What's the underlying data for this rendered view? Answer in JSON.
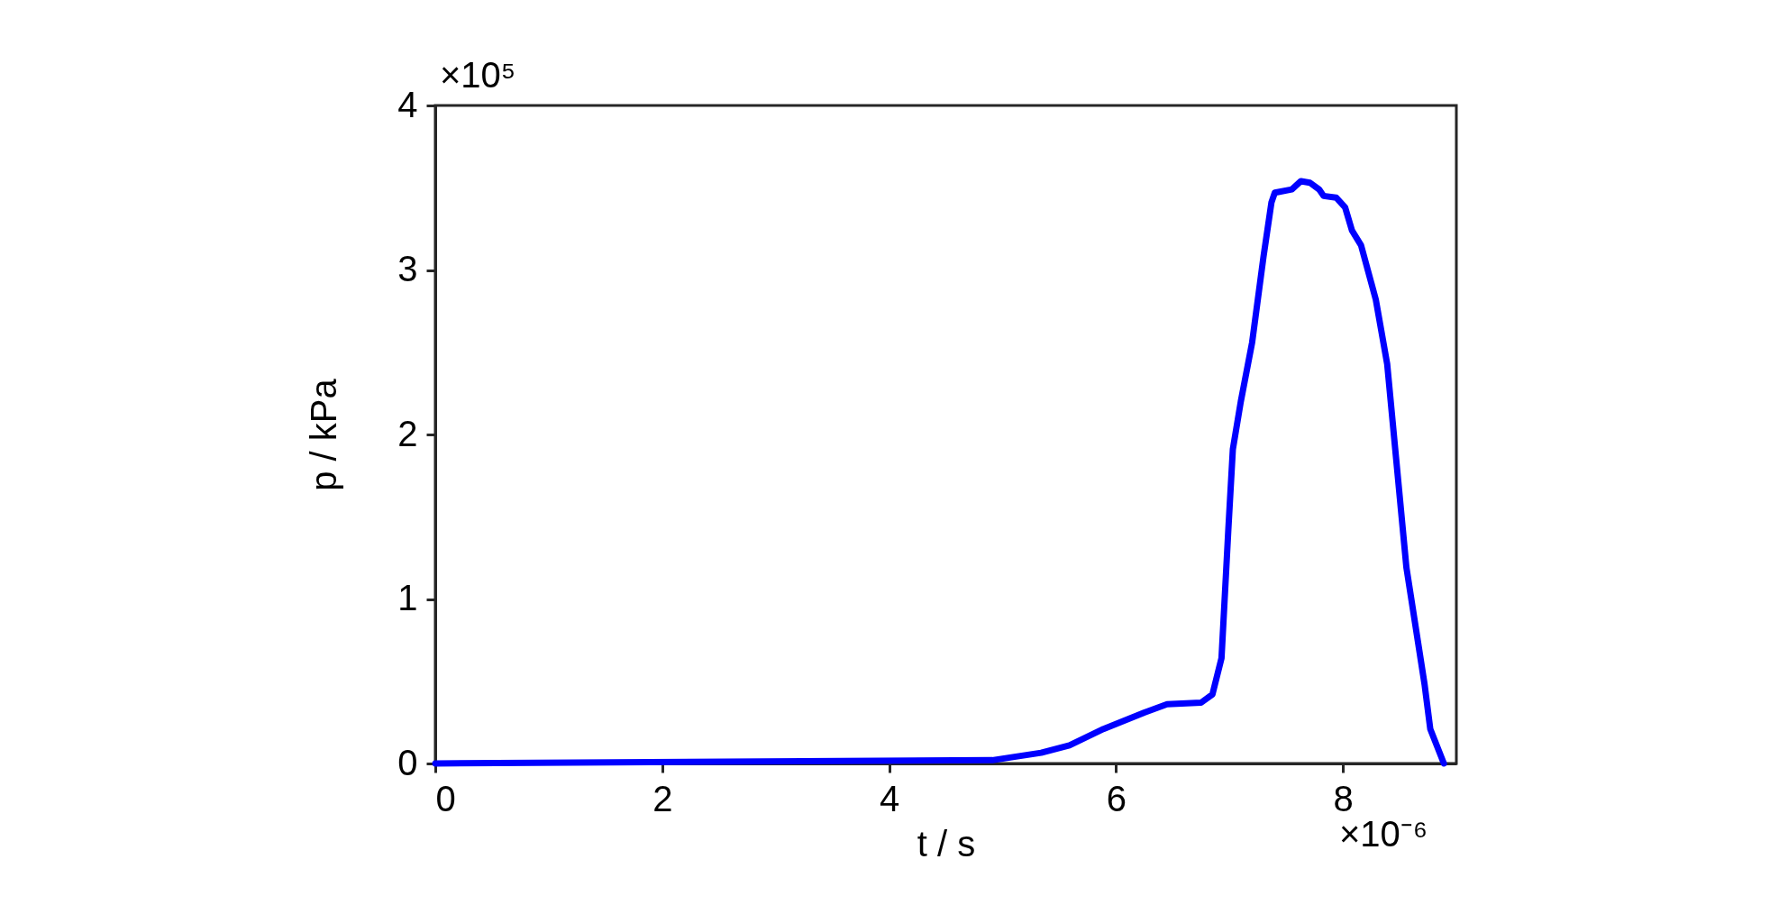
{
  "chart_data": {
    "type": "line",
    "xlabel": "t / s",
    "ylabel": "p / kPa",
    "annotations": [
      "×10⁵",
      "×10⁻⁶"
    ],
    "xlim": [
      0,
      9
    ],
    "xticks": [
      0,
      2,
      4,
      6,
      8
    ],
    "ylim": [
      0,
      4
    ],
    "yticks": [
      0,
      1,
      2,
      3,
      4
    ],
    "grid": false,
    "marker": "none",
    "line_style": "solid",
    "series": [
      {
        "color": "#0000ff",
        "x": [
          0,
          4.91,
          5.34,
          5.59,
          5.89,
          6.25,
          6.45,
          6.75,
          6.85,
          6.93,
          6.99,
          7.03,
          7.1,
          7.2,
          7.3,
          7.37,
          7.4,
          7.55,
          7.63,
          7.71,
          7.79,
          7.83,
          7.94,
          8.02,
          8.08,
          8.16,
          8.29,
          8.39,
          8.56,
          8.72,
          8.77,
          8.89
        ],
        "values": [
          0,
          0.02,
          0.065,
          0.11,
          0.21,
          0.31,
          0.36,
          0.37,
          0.42,
          0.64,
          1.42,
          1.91,
          2.2,
          2.56,
          3.08,
          3.41,
          3.47,
          3.49,
          3.54,
          3.53,
          3.49,
          3.45,
          3.44,
          3.38,
          3.24,
          3.15,
          2.82,
          2.43,
          1.19,
          0.48,
          0.21,
          0
        ]
      }
    ]
  }
}
